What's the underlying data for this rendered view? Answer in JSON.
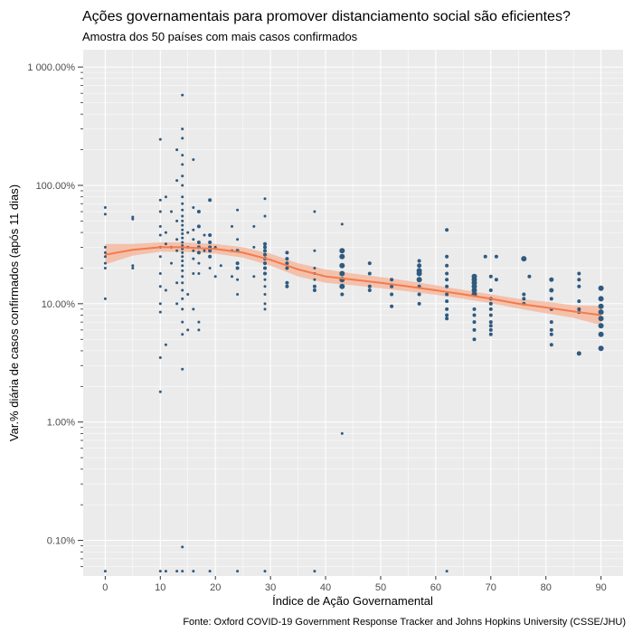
{
  "chart_data": {
    "type": "scatter",
    "title": "Ações governamentais para promover distanciamento social são eficientes?",
    "subtitle": "Amostra dos 50 países com mais casos confirmados",
    "xlabel": "Índice de Ação Governamental",
    "ylabel": "Var.% diária de casos confirmados (após 11 dias)",
    "caption": "Fonte: Oxford COVID-19 Government Response Tracker and Johns Hopkins University (CSSE/JHU)",
    "x_scale": "linear",
    "y_scale": "log10",
    "xlim": [
      -4,
      94
    ],
    "ylim_percent": [
      0.05,
      1400
    ],
    "grid": true,
    "x_ticks": [
      0,
      10,
      20,
      30,
      40,
      50,
      60,
      70,
      80,
      90
    ],
    "x_tick_labels": [
      "0",
      "10",
      "20",
      "30",
      "40",
      "50",
      "60",
      "70",
      "80",
      "90"
    ],
    "y_ticks_percent": [
      0.1,
      1,
      10,
      100,
      1000
    ],
    "y_tick_labels": [
      "0.10%",
      "1.00%",
      "10.00%",
      "100.00%",
      "1 000.00%"
    ],
    "colors": {
      "points": "#2f5a7f",
      "trend": "#f47a4c",
      "band": "#f5b396",
      "panel": "#ebebeb",
      "grid": "#ffffff"
    },
    "points": [
      {
        "x": 0,
        "y": 65,
        "s": 1.5
      },
      {
        "x": 0,
        "y": 57,
        "s": 1.5
      },
      {
        "x": 0,
        "y": 30,
        "s": 1.5
      },
      {
        "x": 0,
        "y": 27,
        "s": 1.5
      },
      {
        "x": 0,
        "y": 25,
        "s": 1.5
      },
      {
        "x": 0,
        "y": 22,
        "s": 1.5
      },
      {
        "x": 0,
        "y": 20,
        "s": 1.5
      },
      {
        "x": 0,
        "y": 11,
        "s": 1.5
      },
      {
        "x": 0,
        "y": 0.055,
        "s": 1.5
      },
      {
        "x": 5,
        "y": 54,
        "s": 1.5
      },
      {
        "x": 5,
        "y": 52,
        "s": 1.5
      },
      {
        "x": 5,
        "y": 21,
        "s": 1.5
      },
      {
        "x": 5,
        "y": 20,
        "s": 1.5
      },
      {
        "x": 10,
        "y": 245,
        "s": 1.5
      },
      {
        "x": 10,
        "y": 75,
        "s": 1.5
      },
      {
        "x": 10,
        "y": 60,
        "s": 1.5
      },
      {
        "x": 10,
        "y": 45,
        "s": 1.5
      },
      {
        "x": 10,
        "y": 38,
        "s": 1.5
      },
      {
        "x": 10,
        "y": 30,
        "s": 1.5
      },
      {
        "x": 10,
        "y": 25,
        "s": 1.5
      },
      {
        "x": 10,
        "y": 18,
        "s": 1.5
      },
      {
        "x": 10,
        "y": 14,
        "s": 1.5
      },
      {
        "x": 10,
        "y": 10,
        "s": 1.5
      },
      {
        "x": 10,
        "y": 8.5,
        "s": 1.5
      },
      {
        "x": 10,
        "y": 3.5,
        "s": 1.5
      },
      {
        "x": 10,
        "y": 1.8,
        "s": 1.5
      },
      {
        "x": 10,
        "y": 0.055,
        "s": 1.5
      },
      {
        "x": 11,
        "y": 80,
        "s": 1.5
      },
      {
        "x": 11,
        "y": 40,
        "s": 1.5
      },
      {
        "x": 11,
        "y": 32,
        "s": 1.5
      },
      {
        "x": 11,
        "y": 13,
        "s": 1.5
      },
      {
        "x": 11,
        "y": 4.5,
        "s": 1.5
      },
      {
        "x": 11,
        "y": 0.055,
        "s": 1.5
      },
      {
        "x": 12,
        "y": 60,
        "s": 1.5
      },
      {
        "x": 12,
        "y": 30,
        "s": 1.5
      },
      {
        "x": 12,
        "y": 22,
        "s": 1.5
      },
      {
        "x": 13,
        "y": 200,
        "s": 1.5
      },
      {
        "x": 13,
        "y": 110,
        "s": 1.5
      },
      {
        "x": 13,
        "y": 50,
        "s": 1.5
      },
      {
        "x": 13,
        "y": 35,
        "s": 1.5
      },
      {
        "x": 13,
        "y": 28,
        "s": 1.5
      },
      {
        "x": 13,
        "y": 15,
        "s": 1.5
      },
      {
        "x": 13,
        "y": 10,
        "s": 1.5
      },
      {
        "x": 13,
        "y": 0.055,
        "s": 1.5
      },
      {
        "x": 14,
        "y": 580,
        "s": 1.5
      },
      {
        "x": 14,
        "y": 300,
        "s": 1.5
      },
      {
        "x": 14,
        "y": 250,
        "s": 1.5
      },
      {
        "x": 14,
        "y": 180,
        "s": 1.5
      },
      {
        "x": 14,
        "y": 150,
        "s": 1.5
      },
      {
        "x": 14,
        "y": 120,
        "s": 1.5
      },
      {
        "x": 14,
        "y": 100,
        "s": 1.5
      },
      {
        "x": 14,
        "y": 80,
        "s": 1.5
      },
      {
        "x": 14,
        "y": 70,
        "s": 1.5
      },
      {
        "x": 14,
        "y": 62,
        "s": 1.5
      },
      {
        "x": 14,
        "y": 55,
        "s": 1.5
      },
      {
        "x": 14,
        "y": 50,
        "s": 1.5
      },
      {
        "x": 14,
        "y": 46,
        "s": 1.5
      },
      {
        "x": 14,
        "y": 42,
        "s": 1.5
      },
      {
        "x": 14,
        "y": 39,
        "s": 1.5
      },
      {
        "x": 14,
        "y": 36,
        "s": 1.5
      },
      {
        "x": 14,
        "y": 33,
        "s": 1.5
      },
      {
        "x": 14,
        "y": 31,
        "s": 1.5
      },
      {
        "x": 14,
        "y": 29,
        "s": 1.5
      },
      {
        "x": 14,
        "y": 27,
        "s": 1.5
      },
      {
        "x": 14,
        "y": 25,
        "s": 1.5
      },
      {
        "x": 14,
        "y": 23,
        "s": 1.5
      },
      {
        "x": 14,
        "y": 21,
        "s": 1.5
      },
      {
        "x": 14,
        "y": 19,
        "s": 1.5
      },
      {
        "x": 14,
        "y": 17,
        "s": 1.5
      },
      {
        "x": 14,
        "y": 15,
        "s": 1.5
      },
      {
        "x": 14,
        "y": 13,
        "s": 1.5
      },
      {
        "x": 14,
        "y": 11,
        "s": 1.5
      },
      {
        "x": 14,
        "y": 9,
        "s": 1.5
      },
      {
        "x": 14,
        "y": 7,
        "s": 1.5
      },
      {
        "x": 14,
        "y": 5.5,
        "s": 1.5
      },
      {
        "x": 14,
        "y": 2.8,
        "s": 1.5
      },
      {
        "x": 14,
        "y": 0.088,
        "s": 1.5
      },
      {
        "x": 14,
        "y": 0.055,
        "s": 1.5
      },
      {
        "x": 15,
        "y": 40,
        "s": 1.5
      },
      {
        "x": 15,
        "y": 30,
        "s": 1.5
      },
      {
        "x": 15,
        "y": 12,
        "s": 1.5
      },
      {
        "x": 15,
        "y": 6,
        "s": 1.5
      },
      {
        "x": 16,
        "y": 165,
        "s": 1.5
      },
      {
        "x": 16,
        "y": 65,
        "s": 1.5
      },
      {
        "x": 16,
        "y": 42,
        "s": 1.5
      },
      {
        "x": 16,
        "y": 35,
        "s": 1.5
      },
      {
        "x": 16,
        "y": 28,
        "s": 1.5
      },
      {
        "x": 16,
        "y": 24,
        "s": 1.5
      },
      {
        "x": 16,
        "y": 18,
        "s": 1.5
      },
      {
        "x": 16,
        "y": 9,
        "s": 1.5
      },
      {
        "x": 16,
        "y": 0.055,
        "s": 1.5
      },
      {
        "x": 17,
        "y": 60,
        "s": 2
      },
      {
        "x": 17,
        "y": 45,
        "s": 2
      },
      {
        "x": 17,
        "y": 33,
        "s": 2
      },
      {
        "x": 17,
        "y": 30,
        "s": 2
      },
      {
        "x": 17,
        "y": 27,
        "s": 2
      },
      {
        "x": 17,
        "y": 22,
        "s": 1.5
      },
      {
        "x": 17,
        "y": 18,
        "s": 1.5
      },
      {
        "x": 17,
        "y": 7,
        "s": 1.5
      },
      {
        "x": 17,
        "y": 6,
        "s": 1.5
      },
      {
        "x": 18,
        "y": 38,
        "s": 1.5
      },
      {
        "x": 18,
        "y": 28,
        "s": 1.5
      },
      {
        "x": 19,
        "y": 75,
        "s": 2
      },
      {
        "x": 19,
        "y": 38,
        "s": 2
      },
      {
        "x": 19,
        "y": 33,
        "s": 2
      },
      {
        "x": 19,
        "y": 30,
        "s": 2
      },
      {
        "x": 19,
        "y": 28,
        "s": 2
      },
      {
        "x": 19,
        "y": 25,
        "s": 2
      },
      {
        "x": 19,
        "y": 20,
        "s": 1.5
      },
      {
        "x": 19,
        "y": 0.055,
        "s": 1.5
      },
      {
        "x": 20,
        "y": 30,
        "s": 1.5
      },
      {
        "x": 20,
        "y": 17,
        "s": 1.5
      },
      {
        "x": 21,
        "y": 21,
        "s": 1.5
      },
      {
        "x": 23,
        "y": 45,
        "s": 1.5
      },
      {
        "x": 23,
        "y": 28,
        "s": 1.5
      },
      {
        "x": 23,
        "y": 17,
        "s": 1.5
      },
      {
        "x": 24,
        "y": 62,
        "s": 1.5
      },
      {
        "x": 24,
        "y": 35,
        "s": 1.5
      },
      {
        "x": 24,
        "y": 28,
        "s": 2
      },
      {
        "x": 24,
        "y": 22,
        "s": 2
      },
      {
        "x": 24,
        "y": 20,
        "s": 2
      },
      {
        "x": 24,
        "y": 16,
        "s": 1.5
      },
      {
        "x": 24,
        "y": 12,
        "s": 1.5
      },
      {
        "x": 24,
        "y": 0.055,
        "s": 1.5
      },
      {
        "x": 27,
        "y": 45,
        "s": 1.5
      },
      {
        "x": 27,
        "y": 30,
        "s": 1.5
      },
      {
        "x": 27,
        "y": 17,
        "s": 1.5
      },
      {
        "x": 29,
        "y": 77,
        "s": 1.5
      },
      {
        "x": 29,
        "y": 55,
        "s": 1.5
      },
      {
        "x": 29,
        "y": 32,
        "s": 2
      },
      {
        "x": 29,
        "y": 30,
        "s": 2
      },
      {
        "x": 29,
        "y": 28,
        "s": 2
      },
      {
        "x": 29,
        "y": 26,
        "s": 2
      },
      {
        "x": 29,
        "y": 24,
        "s": 2
      },
      {
        "x": 29,
        "y": 22,
        "s": 2
      },
      {
        "x": 29,
        "y": 20,
        "s": 2
      },
      {
        "x": 29,
        "y": 18,
        "s": 2
      },
      {
        "x": 29,
        "y": 16,
        "s": 1.5
      },
      {
        "x": 29,
        "y": 14,
        "s": 1.5
      },
      {
        "x": 29,
        "y": 12,
        "s": 1.5
      },
      {
        "x": 29,
        "y": 10,
        "s": 1.5
      },
      {
        "x": 29,
        "y": 9,
        "s": 1.5
      },
      {
        "x": 29,
        "y": 0.055,
        "s": 1.5
      },
      {
        "x": 33,
        "y": 27,
        "s": 2
      },
      {
        "x": 33,
        "y": 24,
        "s": 2
      },
      {
        "x": 33,
        "y": 22,
        "s": 2
      },
      {
        "x": 33,
        "y": 20,
        "s": 2
      },
      {
        "x": 33,
        "y": 15,
        "s": 2
      },
      {
        "x": 33,
        "y": 14,
        "s": 2
      },
      {
        "x": 38,
        "y": 60,
        "s": 1.5
      },
      {
        "x": 38,
        "y": 28,
        "s": 1.5
      },
      {
        "x": 38,
        "y": 20,
        "s": 1.5
      },
      {
        "x": 38,
        "y": 18,
        "s": 1.5
      },
      {
        "x": 38,
        "y": 16,
        "s": 1.5
      },
      {
        "x": 38,
        "y": 14,
        "s": 2
      },
      {
        "x": 38,
        "y": 13,
        "s": 2
      },
      {
        "x": 38,
        "y": 0.055,
        "s": 1.5
      },
      {
        "x": 43,
        "y": 47,
        "s": 1.5
      },
      {
        "x": 43,
        "y": 28,
        "s": 3
      },
      {
        "x": 43,
        "y": 25,
        "s": 3
      },
      {
        "x": 43,
        "y": 21,
        "s": 3
      },
      {
        "x": 43,
        "y": 18,
        "s": 3
      },
      {
        "x": 43,
        "y": 16,
        "s": 3
      },
      {
        "x": 43,
        "y": 14,
        "s": 3
      },
      {
        "x": 43,
        "y": 12,
        "s": 2
      },
      {
        "x": 43,
        "y": 0.8,
        "s": 1.5
      },
      {
        "x": 48,
        "y": 22,
        "s": 2
      },
      {
        "x": 48,
        "y": 18,
        "s": 2
      },
      {
        "x": 48,
        "y": 14,
        "s": 2
      },
      {
        "x": 48,
        "y": 13,
        "s": 2
      },
      {
        "x": 52,
        "y": 16,
        "s": 2
      },
      {
        "x": 52,
        "y": 14,
        "s": 2
      },
      {
        "x": 52,
        "y": 12,
        "s": 2
      },
      {
        "x": 52,
        "y": 9.5,
        "s": 2
      },
      {
        "x": 57,
        "y": 23,
        "s": 2
      },
      {
        "x": 57,
        "y": 21,
        "s": 2.5
      },
      {
        "x": 57,
        "y": 19,
        "s": 3
      },
      {
        "x": 57,
        "y": 18,
        "s": 3
      },
      {
        "x": 57,
        "y": 16,
        "s": 3
      },
      {
        "x": 57,
        "y": 14,
        "s": 2
      },
      {
        "x": 57,
        "y": 12,
        "s": 2
      },
      {
        "x": 57,
        "y": 10,
        "s": 2
      },
      {
        "x": 62,
        "y": 42,
        "s": 2
      },
      {
        "x": 62,
        "y": 25,
        "s": 2
      },
      {
        "x": 62,
        "y": 21,
        "s": 2
      },
      {
        "x": 62,
        "y": 18,
        "s": 2
      },
      {
        "x": 62,
        "y": 16,
        "s": 2
      },
      {
        "x": 62,
        "y": 14,
        "s": 2
      },
      {
        "x": 62,
        "y": 12,
        "s": 2
      },
      {
        "x": 62,
        "y": 10.5,
        "s": 2
      },
      {
        "x": 62,
        "y": 9,
        "s": 2
      },
      {
        "x": 62,
        "y": 8,
        "s": 2
      },
      {
        "x": 62,
        "y": 7.5,
        "s": 2
      },
      {
        "x": 62,
        "y": 0.055,
        "s": 1.5
      },
      {
        "x": 67,
        "y": 17,
        "s": 3
      },
      {
        "x": 67,
        "y": 16,
        "s": 3
      },
      {
        "x": 67,
        "y": 15,
        "s": 3
      },
      {
        "x": 67,
        "y": 14,
        "s": 3
      },
      {
        "x": 67,
        "y": 13,
        "s": 3
      },
      {
        "x": 67,
        "y": 12,
        "s": 3
      },
      {
        "x": 67,
        "y": 9,
        "s": 2
      },
      {
        "x": 67,
        "y": 8,
        "s": 2
      },
      {
        "x": 67,
        "y": 7,
        "s": 2
      },
      {
        "x": 67,
        "y": 6,
        "s": 2
      },
      {
        "x": 67,
        "y": 5,
        "s": 2
      },
      {
        "x": 69,
        "y": 25,
        "s": 2
      },
      {
        "x": 70,
        "y": 17,
        "s": 2
      },
      {
        "x": 70,
        "y": 13,
        "s": 2
      },
      {
        "x": 70,
        "y": 11,
        "s": 2
      },
      {
        "x": 70,
        "y": 10,
        "s": 2
      },
      {
        "x": 70,
        "y": 9,
        "s": 2
      },
      {
        "x": 70,
        "y": 8,
        "s": 2
      },
      {
        "x": 70,
        "y": 7,
        "s": 2
      },
      {
        "x": 70,
        "y": 6.5,
        "s": 2
      },
      {
        "x": 70,
        "y": 6,
        "s": 2
      },
      {
        "x": 70,
        "y": 5.5,
        "s": 2
      },
      {
        "x": 71,
        "y": 25,
        "s": 2
      },
      {
        "x": 71,
        "y": 16,
        "s": 2
      },
      {
        "x": 76,
        "y": 24,
        "s": 3
      },
      {
        "x": 76,
        "y": 12,
        "s": 2
      },
      {
        "x": 76,
        "y": 11,
        "s": 2
      },
      {
        "x": 76,
        "y": 10,
        "s": 2
      },
      {
        "x": 77,
        "y": 17,
        "s": 2
      },
      {
        "x": 81,
        "y": 16,
        "s": 2.5
      },
      {
        "x": 81,
        "y": 13,
        "s": 2.5
      },
      {
        "x": 81,
        "y": 11,
        "s": 2
      },
      {
        "x": 81,
        "y": 9,
        "s": 2
      },
      {
        "x": 81,
        "y": 7,
        "s": 2
      },
      {
        "x": 81,
        "y": 6,
        "s": 2
      },
      {
        "x": 81,
        "y": 5.5,
        "s": 2
      },
      {
        "x": 81,
        "y": 4.5,
        "s": 2
      },
      {
        "x": 86,
        "y": 18,
        "s": 2
      },
      {
        "x": 86,
        "y": 16,
        "s": 2
      },
      {
        "x": 86,
        "y": 14,
        "s": 2
      },
      {
        "x": 86,
        "y": 10.5,
        "s": 2
      },
      {
        "x": 86,
        "y": 9,
        "s": 2
      },
      {
        "x": 86,
        "y": 8.5,
        "s": 2
      },
      {
        "x": 86,
        "y": 3.8,
        "s": 2.5
      },
      {
        "x": 90,
        "y": 13.5,
        "s": 3
      },
      {
        "x": 90,
        "y": 11,
        "s": 3
      },
      {
        "x": 90,
        "y": 9.5,
        "s": 3
      },
      {
        "x": 90,
        "y": 8.5,
        "s": 3
      },
      {
        "x": 90,
        "y": 7.5,
        "s": 3
      },
      {
        "x": 90,
        "y": 6.5,
        "s": 3
      },
      {
        "x": 90,
        "y": 5.5,
        "s": 3
      },
      {
        "x": 90,
        "y": 4.2,
        "s": 3
      }
    ],
    "trend": {
      "x": [
        0,
        5,
        10,
        14,
        17,
        20,
        25,
        30,
        35,
        40,
        45,
        50,
        55,
        60,
        65,
        70,
        75,
        80,
        85,
        90
      ],
      "y": [
        26,
        28.5,
        30,
        30,
        29.5,
        29,
        27,
        23.5,
        19.5,
        17,
        16,
        15,
        14,
        13,
        12,
        11,
        10,
        9.3,
        8.6,
        8
      ],
      "lower": [
        21.5,
        25.5,
        27.5,
        27.5,
        27,
        26.5,
        24.5,
        21,
        17,
        15,
        14.3,
        13.5,
        12.7,
        11.9,
        11,
        10.1,
        9.1,
        8.3,
        7.6,
        6.6
      ],
      "upper": [
        32,
        32,
        33,
        33,
        32.5,
        32,
        30,
        26.5,
        22,
        19.5,
        18,
        16.8,
        15.6,
        14.3,
        13.1,
        12,
        11,
        10.4,
        9.7,
        9.6
      ]
    }
  }
}
